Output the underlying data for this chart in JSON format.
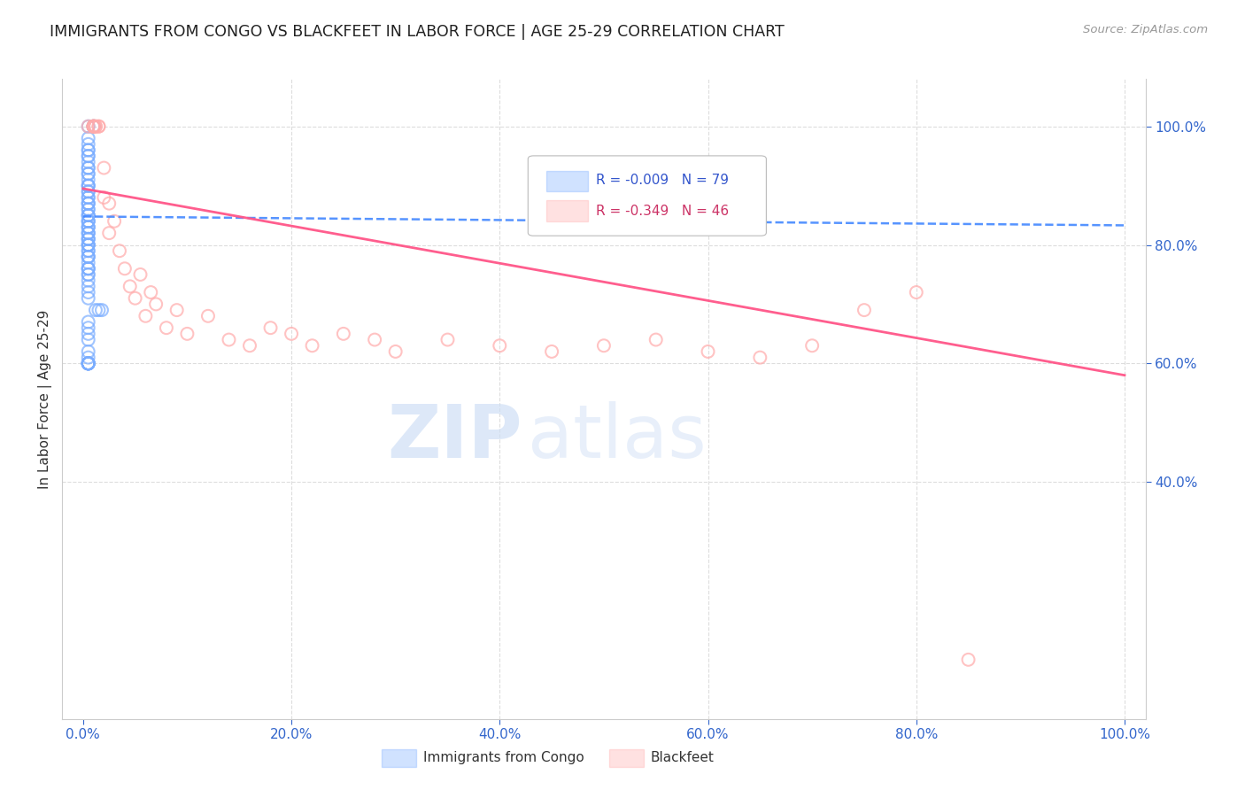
{
  "title": "IMMIGRANTS FROM CONGO VS BLACKFEET IN LABOR FORCE | AGE 25-29 CORRELATION CHART",
  "source": "Source: ZipAtlas.com",
  "ylabel": "In Labor Force | Age 25-29",
  "xlim": [
    -0.02,
    1.02
  ],
  "ylim": [
    0.0,
    1.08
  ],
  "xticks": [
    0.0,
    0.2,
    0.4,
    0.6,
    0.8,
    1.0
  ],
  "xticklabels": [
    "0.0%",
    "20.0%",
    "40.0%",
    "60.0%",
    "80.0%",
    "100.0%"
  ],
  "yticks_right": [
    0.4,
    0.6,
    0.8,
    1.0
  ],
  "yticklabels_right": [
    "40.0%",
    "60.0%",
    "80.0%",
    "100.0%"
  ],
  "grid_color": "#dddddd",
  "blue_color": "#7aadff",
  "pink_color": "#ffaaaa",
  "blue_line_color": "#4488ff",
  "pink_line_color": "#ff5588",
  "legend_R_blue": "-0.009",
  "legend_N_blue": "79",
  "legend_R_pink": "-0.349",
  "legend_N_pink": "46",
  "legend_label_blue": "Immigrants from Congo",
  "legend_label_pink": "Blackfeet",
  "blue_trend_x0": 0.0,
  "blue_trend_x1": 1.0,
  "blue_trend_y0": 0.848,
  "blue_trend_y1": 0.833,
  "pink_trend_x0": 0.0,
  "pink_trend_x1": 1.0,
  "pink_trend_y0": 0.895,
  "pink_trend_y1": 0.58,
  "blue_scatter_x": [
    0.005,
    0.01,
    0.01,
    0.005,
    0.005,
    0.005,
    0.005,
    0.005,
    0.005,
    0.005,
    0.005,
    0.005,
    0.005,
    0.005,
    0.005,
    0.005,
    0.005,
    0.005,
    0.005,
    0.005,
    0.005,
    0.005,
    0.005,
    0.005,
    0.005,
    0.005,
    0.005,
    0.005,
    0.005,
    0.005,
    0.005,
    0.005,
    0.005,
    0.005,
    0.005,
    0.005,
    0.005,
    0.005,
    0.005,
    0.005,
    0.005,
    0.005,
    0.005,
    0.005,
    0.005,
    0.005,
    0.005,
    0.005,
    0.005,
    0.005,
    0.005,
    0.005,
    0.005,
    0.005,
    0.005,
    0.005,
    0.005,
    0.005,
    0.005,
    0.005,
    0.005,
    0.012,
    0.015,
    0.018,
    0.005,
    0.005,
    0.005,
    0.005,
    0.005,
    0.005,
    0.005,
    0.005,
    0.005,
    0.005,
    0.005,
    0.005,
    0.005,
    0.005,
    0.005
  ],
  "blue_scatter_y": [
    1.0,
    1.0,
    1.0,
    0.98,
    0.97,
    0.96,
    0.96,
    0.95,
    0.95,
    0.94,
    0.93,
    0.93,
    0.92,
    0.92,
    0.91,
    0.9,
    0.9,
    0.9,
    0.89,
    0.89,
    0.88,
    0.88,
    0.87,
    0.87,
    0.87,
    0.86,
    0.86,
    0.85,
    0.85,
    0.85,
    0.84,
    0.84,
    0.84,
    0.83,
    0.83,
    0.83,
    0.82,
    0.82,
    0.82,
    0.81,
    0.81,
    0.81,
    0.8,
    0.8,
    0.8,
    0.8,
    0.79,
    0.79,
    0.78,
    0.78,
    0.78,
    0.77,
    0.76,
    0.76,
    0.76,
    0.75,
    0.75,
    0.74,
    0.73,
    0.72,
    0.71,
    0.69,
    0.69,
    0.69,
    0.67,
    0.66,
    0.65,
    0.64,
    0.62,
    0.61,
    0.6,
    0.6,
    0.6,
    0.6,
    0.6,
    0.6,
    0.6,
    0.6,
    0.6
  ],
  "pink_scatter_x": [
    0.005,
    0.01,
    0.01,
    0.01,
    0.01,
    0.01,
    0.012,
    0.012,
    0.015,
    0.015,
    0.02,
    0.02,
    0.025,
    0.025,
    0.03,
    0.035,
    0.04,
    0.045,
    0.05,
    0.055,
    0.06,
    0.065,
    0.07,
    0.08,
    0.09,
    0.1,
    0.12,
    0.14,
    0.16,
    0.18,
    0.2,
    0.22,
    0.25,
    0.28,
    0.3,
    0.35,
    0.4,
    0.45,
    0.5,
    0.55,
    0.6,
    0.65,
    0.7,
    0.75,
    0.8,
    0.85
  ],
  "pink_scatter_y": [
    1.0,
    1.0,
    1.0,
    1.0,
    1.0,
    1.0,
    1.0,
    1.0,
    1.0,
    1.0,
    0.93,
    0.88,
    0.87,
    0.82,
    0.84,
    0.79,
    0.76,
    0.73,
    0.71,
    0.75,
    0.68,
    0.72,
    0.7,
    0.66,
    0.69,
    0.65,
    0.68,
    0.64,
    0.63,
    0.66,
    0.65,
    0.63,
    0.65,
    0.64,
    0.62,
    0.64,
    0.63,
    0.62,
    0.63,
    0.64,
    0.62,
    0.61,
    0.63,
    0.69,
    0.72,
    0.1
  ]
}
